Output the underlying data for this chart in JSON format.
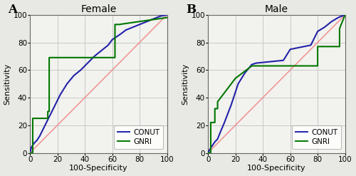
{
  "panel_A": {
    "title": "Female",
    "label": "A",
    "conut_x": [
      0,
      1,
      3,
      5,
      7,
      9,
      11,
      13,
      15,
      17,
      19,
      22,
      27,
      32,
      37,
      42,
      47,
      52,
      57,
      60,
      63,
      66,
      70,
      75,
      80,
      85,
      90,
      95,
      100
    ],
    "conut_y": [
      0,
      4,
      7,
      9,
      12,
      16,
      20,
      24,
      28,
      32,
      36,
      42,
      50,
      56,
      60,
      65,
      70,
      74,
      78,
      82,
      84,
      86,
      89,
      91,
      93,
      95,
      97,
      99,
      100
    ],
    "gnri_x": [
      0,
      2,
      2,
      13,
      13,
      14,
      14,
      62,
      62,
      65,
      100
    ],
    "gnri_y": [
      0,
      0,
      25,
      25,
      30,
      30,
      69,
      69,
      93,
      93,
      98
    ]
  },
  "panel_B": {
    "title": "Male",
    "label": "B",
    "conut_x": [
      0,
      1,
      3,
      5,
      7,
      9,
      12,
      17,
      22,
      27,
      32,
      35,
      45,
      55,
      60,
      65,
      70,
      75,
      80,
      85,
      90,
      95,
      100
    ],
    "conut_y": [
      0,
      2,
      5,
      8,
      10,
      15,
      22,
      35,
      50,
      58,
      64,
      65,
      66,
      67,
      75,
      76,
      77,
      78,
      88,
      91,
      95,
      98,
      100
    ],
    "gnri_x": [
      0,
      2,
      2,
      5,
      5,
      7,
      7,
      20,
      32,
      32,
      80,
      80,
      96,
      96,
      100
    ],
    "gnri_y": [
      0,
      0,
      22,
      22,
      32,
      32,
      37,
      54,
      63,
      63,
      63,
      77,
      77,
      90,
      100
    ]
  },
  "conut_color": "#2222aa",
  "gnri_color": "#007700",
  "diag_color": "#f08080",
  "xlabel": "100-Specificity",
  "ylabel": "Sensitivity",
  "xlim": [
    0,
    100
  ],
  "ylim": [
    0,
    100
  ],
  "xticks": [
    0,
    20,
    40,
    60,
    80,
    100
  ],
  "yticks": [
    0,
    20,
    40,
    60,
    80,
    100
  ],
  "grid_color": "#c8c8c8",
  "bg_color": "#f2f2ee",
  "fig_bg": "#e8e8e4",
  "line_width": 1.5,
  "legend_conut": "CONUT",
  "legend_gnri": "GNRI",
  "title_fontsize": 10,
  "label_fontsize": 8,
  "tick_fontsize": 7.5,
  "legend_fontsize": 7.5
}
